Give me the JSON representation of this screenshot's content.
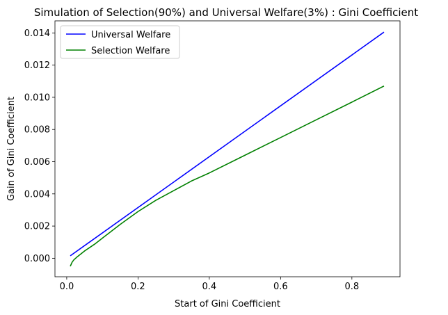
{
  "chart_data": {
    "type": "line",
    "title": "Simulation of Selection(90%) and Universal Welfare(3%) : Gini Coefficient",
    "xlabel": "Start of Gini Coefficient",
    "ylabel": "Gain of Gini Coefficient",
    "xlim": [
      -0.033,
      0.935
    ],
    "ylim": [
      -0.00115,
      0.01475
    ],
    "x_ticks": [
      0.0,
      0.2,
      0.4,
      0.6,
      0.8
    ],
    "x_tick_labels": [
      "0.0",
      "0.2",
      "0.4",
      "0.6",
      "0.8"
    ],
    "y_ticks": [
      0.0,
      0.002,
      0.004,
      0.006,
      0.008,
      0.01,
      0.012,
      0.014
    ],
    "y_tick_labels": [
      "0.000",
      "0.002",
      "0.004",
      "0.006",
      "0.008",
      "0.010",
      "0.012",
      "0.014"
    ],
    "grid": false,
    "legend_position": "top-left",
    "series": [
      {
        "name": "Universal Welfare",
        "color": "#0000ff",
        "x": [
          0.01,
          0.89
        ],
        "y": [
          0.00015,
          0.01405
        ]
      },
      {
        "name": "Selection Welfare",
        "color": "#008000",
        "x": [
          0.01,
          0.015,
          0.02,
          0.03,
          0.05,
          0.08,
          0.1,
          0.15,
          0.2,
          0.25,
          0.3,
          0.35,
          0.4,
          0.5,
          0.6,
          0.7,
          0.8,
          0.89
        ],
        "y": [
          -0.0005,
          -0.00025,
          -0.0001,
          0.0001,
          0.00045,
          0.0009,
          0.00125,
          0.0021,
          0.0029,
          0.0036,
          0.0042,
          0.0048,
          0.0053,
          0.0064,
          0.0075,
          0.0086,
          0.0097,
          0.0107
        ]
      }
    ]
  }
}
